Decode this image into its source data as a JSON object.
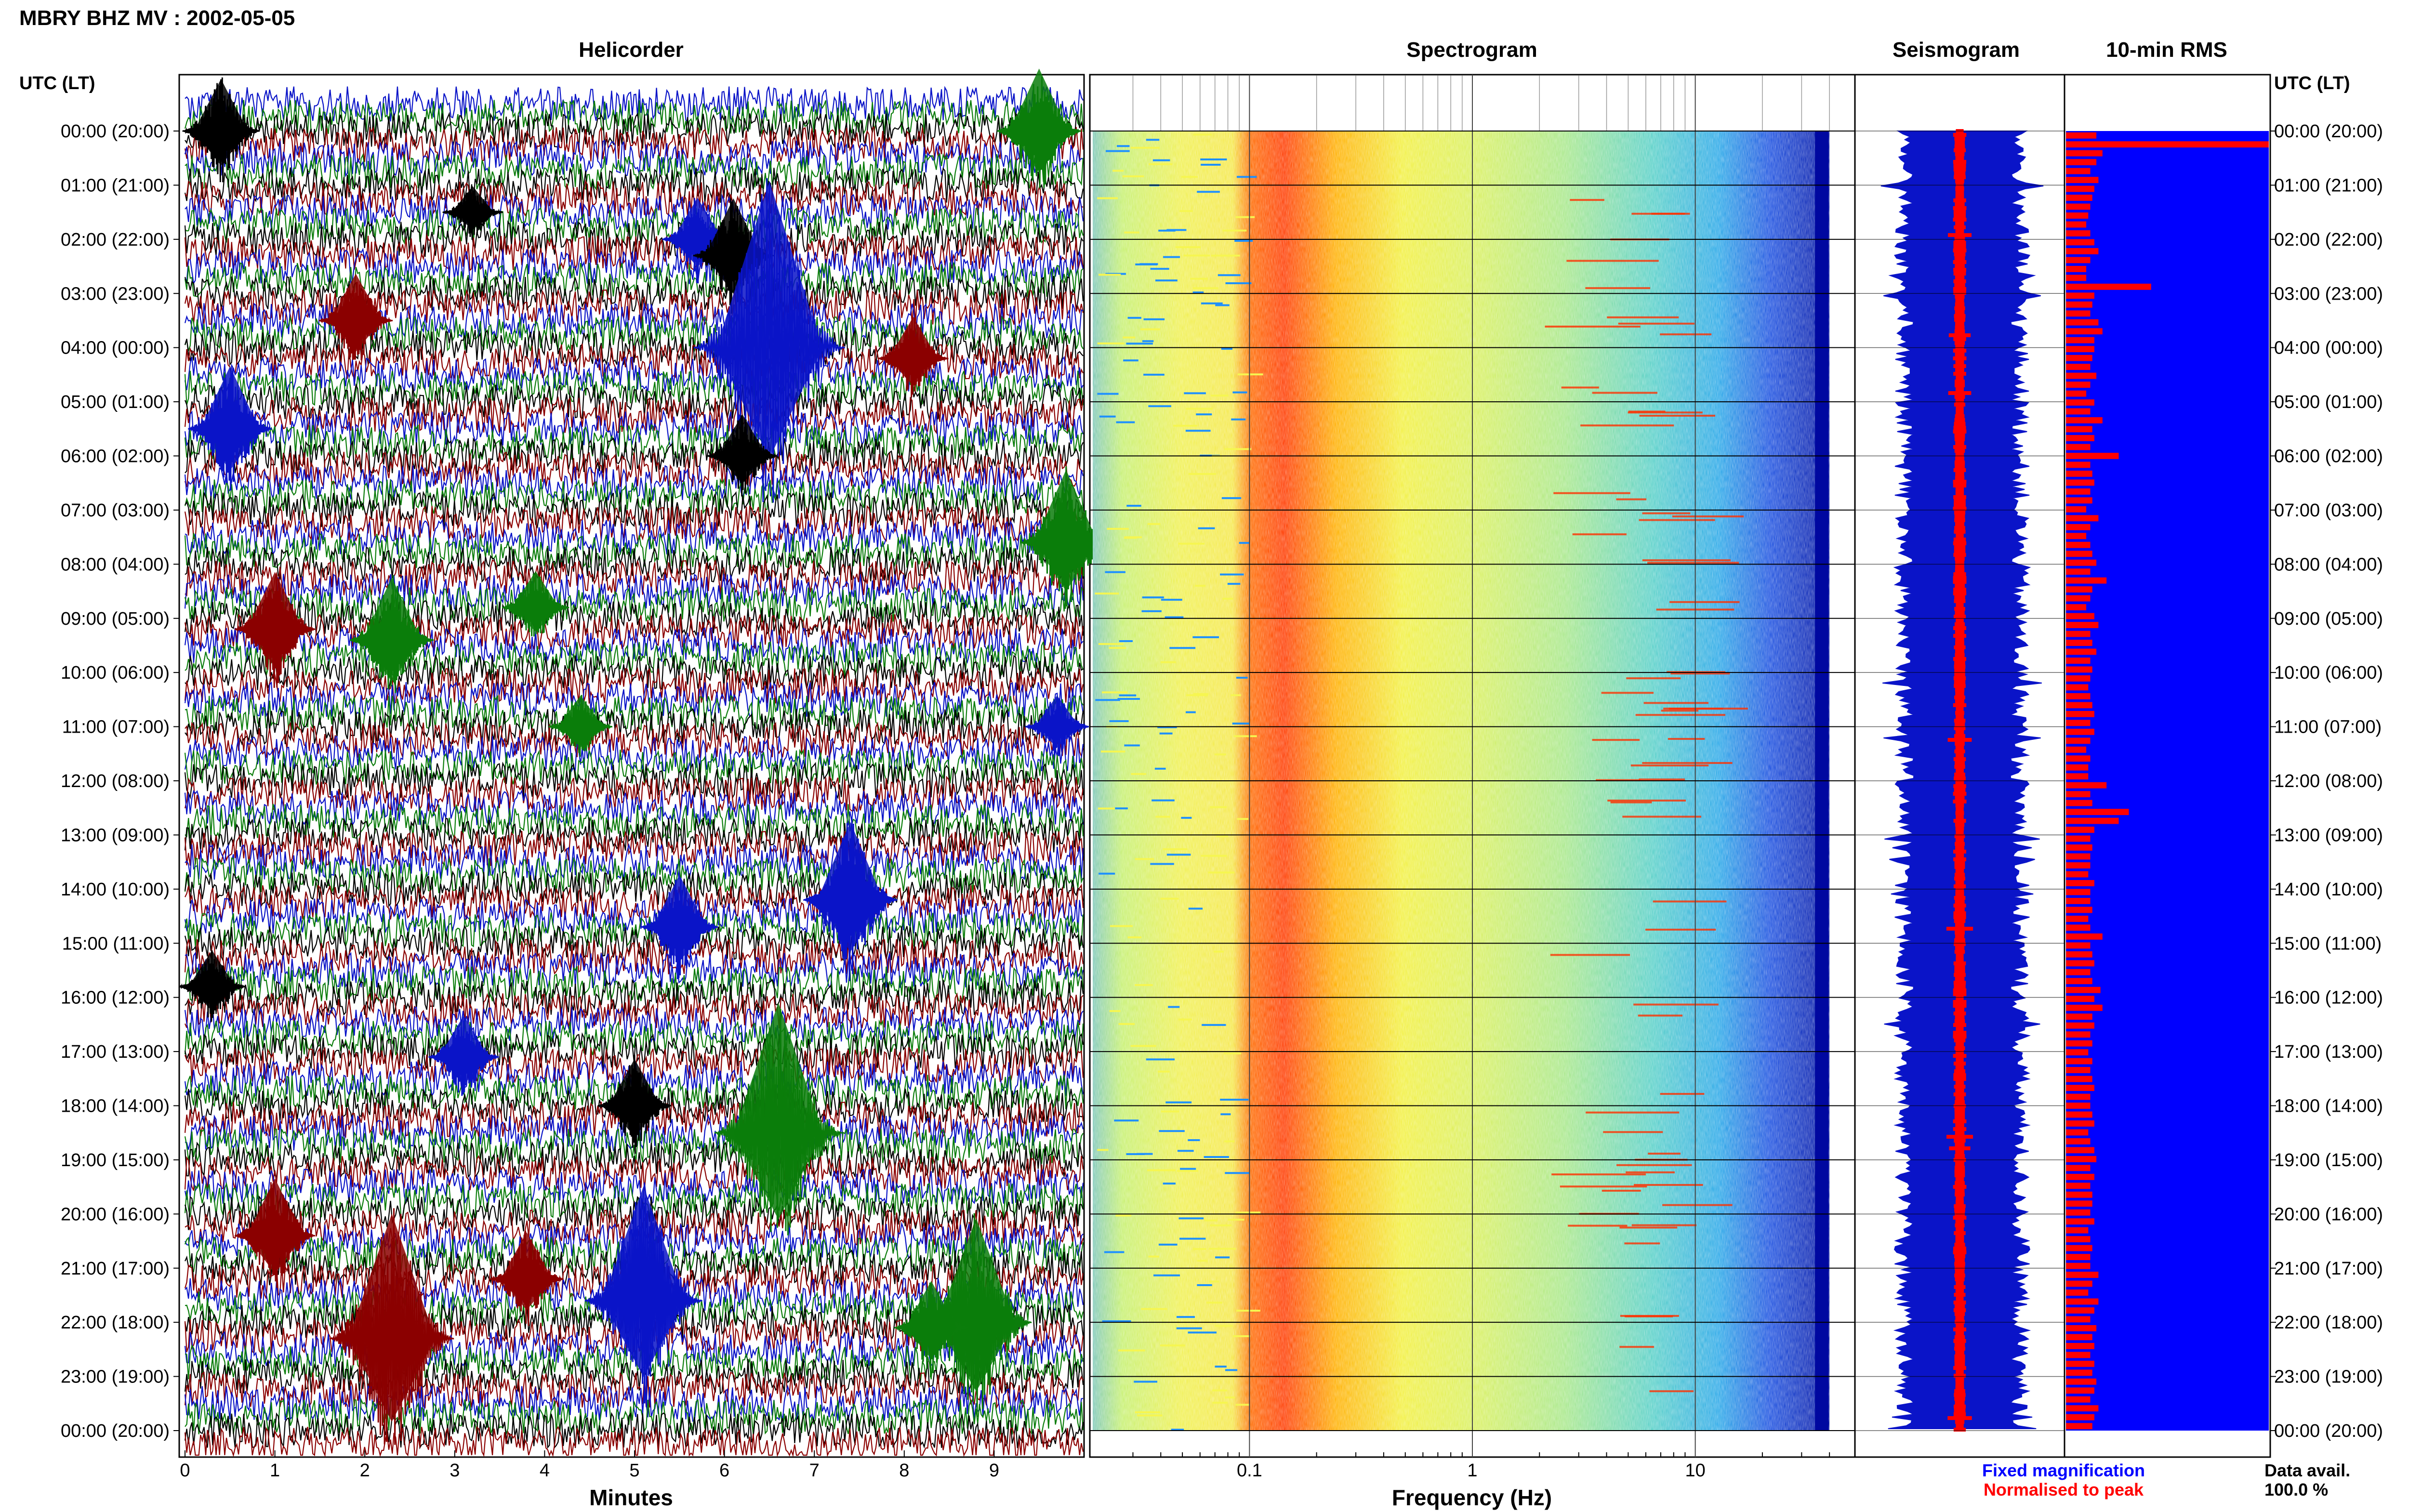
{
  "header": {
    "title": "MBRY BHZ MV : 2002-05-05"
  },
  "panels": {
    "helicorder": "Helicorder",
    "spectrogram": "Spectrogram",
    "seismogram": "Seismogram",
    "rms": "10-min RMS"
  },
  "time_axis": {
    "caption_left": "UTC (LT)",
    "caption_right": "UTC (LT)",
    "rows": [
      "00:00 (20:00)",
      "01:00 (21:00)",
      "02:00 (22:00)",
      "03:00 (23:00)",
      "04:00 (00:00)",
      "05:00 (01:00)",
      "06:00 (02:00)",
      "07:00 (03:00)",
      "08:00 (04:00)",
      "09:00 (05:00)",
      "10:00 (06:00)",
      "11:00 (07:00)",
      "12:00 (08:00)",
      "13:00 (09:00)",
      "14:00 (10:00)",
      "15:00 (11:00)",
      "16:00 (12:00)",
      "17:00 (13:00)",
      "18:00 (14:00)",
      "19:00 (15:00)",
      "20:00 (16:00)",
      "21:00 (17:00)",
      "22:00 (18:00)",
      "23:00 (19:00)",
      "00:00 (20:00)"
    ]
  },
  "footer": {
    "fixed_magnification": "Fixed magnification",
    "normalised_to_peak": "Normalised to peak",
    "data_avail_label": "Data avail.",
    "data_avail_value": "100.0 %"
  },
  "colors": {
    "blue": "#0a14c8",
    "red": "#ff0000",
    "dark_red": "#8b0000",
    "green": "#0b7d0b",
    "black": "#000000",
    "rms_bg": "#0000ff"
  },
  "chart_data": [
    {
      "type": "line",
      "panel": "helicorder",
      "xlabel": "Minutes",
      "x_ticks": [
        "0",
        "1",
        "2",
        "3",
        "4",
        "5",
        "6",
        "7",
        "8",
        "9"
      ],
      "xlim": [
        0,
        10
      ],
      "trace_colors": [
        "black",
        "dark_red",
        "blue",
        "green"
      ],
      "events": [
        {
          "hour": 0.0,
          "minute": 0.4,
          "amp": 1.0,
          "color": "black"
        },
        {
          "hour": 0.0,
          "minute": 9.5,
          "amp": 1.2,
          "color": "green"
        },
        {
          "hour": 1.5,
          "minute": 3.2,
          "amp": 0.5,
          "color": "black"
        },
        {
          "hour": 2.0,
          "minute": 5.7,
          "amp": 0.8,
          "color": "blue"
        },
        {
          "hour": 2.3,
          "minute": 6.1,
          "amp": 1.1,
          "color": "black"
        },
        {
          "hour": 3.5,
          "minute": 1.9,
          "amp": 0.9,
          "color": "dark_red"
        },
        {
          "hour": 4.0,
          "minute": 6.5,
          "amp": 3.2,
          "color": "blue"
        },
        {
          "hour": 4.2,
          "minute": 8.1,
          "amp": 0.8,
          "color": "dark_red"
        },
        {
          "hour": 5.5,
          "minute": 0.5,
          "amp": 1.2,
          "color": "blue"
        },
        {
          "hour": 6.0,
          "minute": 6.2,
          "amp": 0.8,
          "color": "black"
        },
        {
          "hour": 7.6,
          "minute": 9.8,
          "amp": 1.4,
          "color": "green"
        },
        {
          "hour": 8.8,
          "minute": 3.9,
          "amp": 0.7,
          "color": "green"
        },
        {
          "hour": 9.2,
          "minute": 1.0,
          "amp": 1.1,
          "color": "dark_red"
        },
        {
          "hour": 9.4,
          "minute": 2.3,
          "amp": 1.2,
          "color": "green"
        },
        {
          "hour": 11.0,
          "minute": 4.4,
          "amp": 0.6,
          "color": "green"
        },
        {
          "hour": 11.0,
          "minute": 9.7,
          "amp": 0.6,
          "color": "blue"
        },
        {
          "hour": 14.2,
          "minute": 7.4,
          "amp": 1.5,
          "color": "blue"
        },
        {
          "hour": 14.7,
          "minute": 5.5,
          "amp": 1.0,
          "color": "blue"
        },
        {
          "hour": 15.8,
          "minute": 0.3,
          "amp": 0.7,
          "color": "black"
        },
        {
          "hour": 17.1,
          "minute": 3.1,
          "amp": 0.8,
          "color": "blue"
        },
        {
          "hour": 18.0,
          "minute": 5.0,
          "amp": 0.9,
          "color": "black"
        },
        {
          "hour": 18.5,
          "minute": 6.6,
          "amp": 2.5,
          "color": "green"
        },
        {
          "hour": 20.4,
          "minute": 1.0,
          "amp": 1.1,
          "color": "dark_red"
        },
        {
          "hour": 21.2,
          "minute": 3.8,
          "amp": 0.9,
          "color": "dark_red"
        },
        {
          "hour": 21.6,
          "minute": 5.1,
          "amp": 2.2,
          "color": "blue"
        },
        {
          "hour": 22.3,
          "minute": 2.3,
          "amp": 2.4,
          "color": "dark_red"
        },
        {
          "hour": 22.0,
          "minute": 8.8,
          "amp": 2.0,
          "color": "green"
        },
        {
          "hour": 22.1,
          "minute": 8.3,
          "amp": 0.9,
          "color": "green"
        }
      ]
    },
    {
      "type": "heatmap",
      "panel": "spectrogram",
      "xlabel": "Frequency (Hz)",
      "x_scale": "log",
      "x_ticks": [
        "0.1",
        "1",
        "10"
      ],
      "xlim": [
        0.02,
        50
      ],
      "dominant_band_hz": [
        0.22,
        0.45
      ],
      "upper_cutoff_hz": 40
    },
    {
      "type": "line",
      "panel": "seismogram",
      "series": [
        {
          "name": "Fixed magnification",
          "color": "blue"
        },
        {
          "name": "Normalised to peak",
          "color": "red"
        }
      ]
    },
    {
      "type": "bar",
      "panel": "rms",
      "orientation": "horizontal",
      "interval_minutes": 10,
      "values": [
        0.15,
        1.0,
        0.18,
        0.15,
        0.12,
        0.16,
        0.14,
        0.13,
        0.12,
        0.11,
        0.1,
        0.12,
        0.14,
        0.16,
        0.12,
        0.1,
        0.1,
        0.42,
        0.14,
        0.13,
        0.12,
        0.16,
        0.18,
        0.14,
        0.14,
        0.13,
        0.12,
        0.15,
        0.12,
        0.1,
        0.14,
        0.12,
        0.18,
        0.13,
        0.14,
        0.12,
        0.26,
        0.12,
        0.13,
        0.14,
        0.12,
        0.13,
        0.1,
        0.16,
        0.12,
        0.1,
        0.12,
        0.13,
        0.15,
        0.12,
        0.2,
        0.13,
        0.12,
        0.1,
        0.14,
        0.16,
        0.12,
        0.13,
        0.15,
        0.12,
        0.13,
        0.12,
        0.11,
        0.12,
        0.13,
        0.14,
        0.12,
        0.14,
        0.12,
        0.1,
        0.12,
        0.11,
        0.11,
        0.2,
        0.12,
        0.13,
        0.31,
        0.26,
        0.14,
        0.12,
        0.13,
        0.12,
        0.12,
        0.11,
        0.14,
        0.12,
        0.12,
        0.13,
        0.11,
        0.12,
        0.18,
        0.12,
        0.13,
        0.14,
        0.12,
        0.13,
        0.17,
        0.14,
        0.18,
        0.13,
        0.14,
        0.12,
        0.13,
        0.11,
        0.13,
        0.12,
        0.13,
        0.14,
        0.12,
        0.12,
        0.13,
        0.14,
        0.11,
        0.12,
        0.14,
        0.15,
        0.12,
        0.14,
        0.12,
        0.13,
        0.13,
        0.12,
        0.14,
        0.11,
        0.12,
        0.13,
        0.12,
        0.12,
        0.16,
        0.13,
        0.11,
        0.16,
        0.14,
        0.12,
        0.15,
        0.13,
        0.14,
        0.12,
        0.14,
        0.13,
        0.15,
        0.14,
        0.12,
        0.16,
        0.14,
        0.13
      ]
    }
  ]
}
